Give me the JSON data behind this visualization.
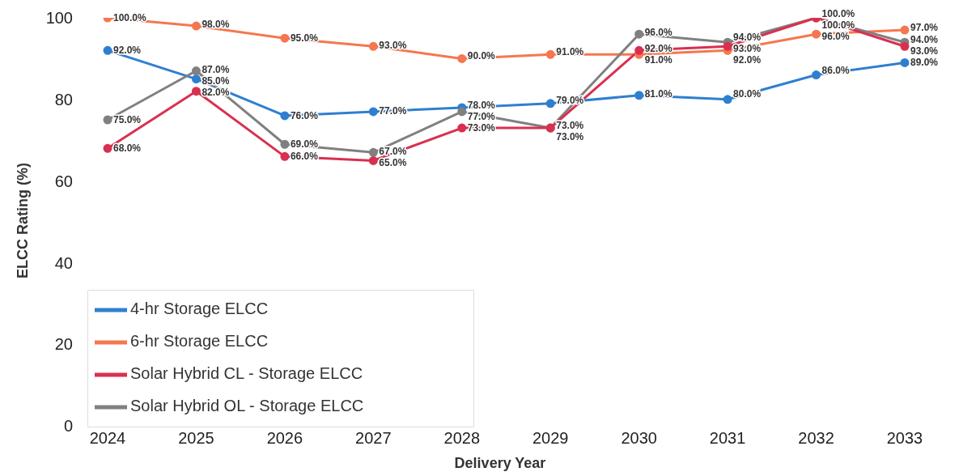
{
  "chart_data": {
    "type": "line",
    "xlabel": "Delivery Year",
    "ylabel": "ELCC Rating (%)",
    "categories": [
      "2024",
      "2025",
      "2026",
      "2027",
      "2028",
      "2029",
      "2030",
      "2031",
      "2032",
      "2033"
    ],
    "series": [
      {
        "name": "4-hr Storage ELCC",
        "color": "#2f7fd0",
        "values": [
          92,
          85,
          76,
          77,
          78,
          79,
          81,
          80,
          86,
          89
        ],
        "value_labels": [
          "92.0%",
          "85.0%",
          "76.0%",
          "77.0%",
          "78.0%",
          "79.0%",
          "81.0%",
          "80.0%",
          "86.0%",
          "89.0%"
        ]
      },
      {
        "name": "6-hr Storage ELCC",
        "color": "#f5774f",
        "values": [
          100,
          98,
          95,
          93,
          90,
          91,
          91,
          92,
          96,
          97
        ],
        "value_labels": [
          "100.0%",
          "98.0%",
          "95.0%",
          "93.0%",
          "90.0%",
          "91.0%",
          "91.0%",
          "92.0%",
          "96.0%",
          "97.0%"
        ]
      },
      {
        "name": "Solar Hybrid OL - Storage ELCC",
        "color": "#808080",
        "values": [
          75,
          87,
          69,
          67,
          77,
          73,
          96,
          94,
          100,
          94
        ],
        "value_labels": [
          "75.0%",
          "87.0%",
          "69.0%",
          "67.0%",
          "77.0%",
          "73.0%",
          "96.0%",
          "94.0%",
          "100.0%",
          "94.0%"
        ]
      },
      {
        "name": "Solar Hybrid CL - Storage ELCC",
        "color": "#d9304f",
        "values": [
          68,
          82,
          66,
          65,
          73,
          73,
          92,
          93,
          100,
          93
        ],
        "value_labels": [
          "68.0%",
          "82.0%",
          "66.0%",
          "65.0%",
          "73.0%",
          "73.0%",
          "92.0%",
          "93.0%",
          "100.0%",
          "93.0%"
        ]
      }
    ],
    "ylim": [
      0,
      100
    ],
    "yticks": [
      0,
      20,
      40,
      60,
      80,
      100
    ],
    "grid": false,
    "legend": "bottom left",
    "marker": "circle",
    "line_style": "solid"
  }
}
